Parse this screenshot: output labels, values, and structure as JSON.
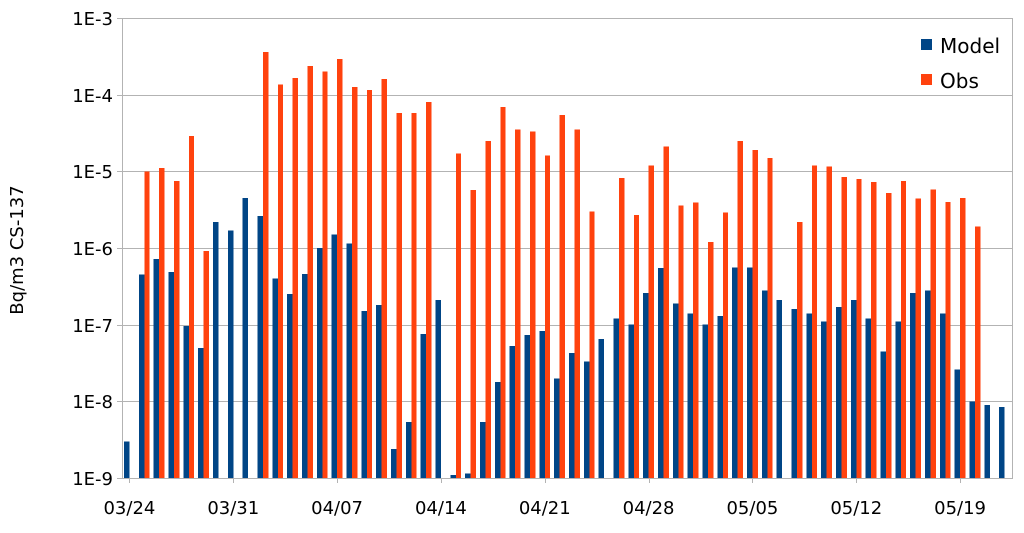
{
  "chart_data": {
    "type": "bar",
    "ylabel": "Bq/m3 CS-137",
    "yscale": "log",
    "ylim": [
      1e-09,
      0.001
    ],
    "grid": true,
    "legend": "top-right",
    "y_ticks": [
      {
        "value": 0.001,
        "label": "1E-3"
      },
      {
        "value": 0.0001,
        "label": "1E-4"
      },
      {
        "value": 1e-05,
        "label": "1E-5"
      },
      {
        "value": 1e-06,
        "label": "1E-6"
      },
      {
        "value": 1e-07,
        "label": "1E-7"
      },
      {
        "value": 1e-08,
        "label": "1E-8"
      },
      {
        "value": 1e-09,
        "label": "1E-9"
      }
    ],
    "x": [
      "03/24",
      "03/25",
      "03/26",
      "03/27",
      "03/28",
      "03/29",
      "03/30",
      "03/31",
      "04/01",
      "04/02",
      "04/03",
      "04/04",
      "04/05",
      "04/06",
      "04/07",
      "04/08",
      "04/09",
      "04/10",
      "04/11",
      "04/12",
      "04/13",
      "04/14",
      "04/15",
      "04/16",
      "04/17",
      "04/18",
      "04/19",
      "04/20",
      "04/21",
      "04/22",
      "04/23",
      "04/24",
      "04/25",
      "04/26",
      "04/27",
      "04/28",
      "04/29",
      "04/30",
      "05/01",
      "05/02",
      "05/03",
      "05/04",
      "05/05",
      "05/06",
      "05/07",
      "05/08",
      "05/09",
      "05/10",
      "05/11",
      "05/12",
      "05/13",
      "05/14",
      "05/15",
      "05/16",
      "05/17",
      "05/18",
      "05/19",
      "05/20",
      "05/21",
      "05/22"
    ],
    "x_tick_labels": [
      "03/24",
      "03/31",
      "04/07",
      "04/14",
      "04/21",
      "04/28",
      "05/05",
      "05/12",
      "05/19"
    ],
    "series": [
      {
        "name": "Model",
        "color": "#004586",
        "values": [
          3e-09,
          4.5e-07,
          7.2e-07,
          4.9e-07,
          9.6e-08,
          5e-08,
          2.2e-06,
          1.7e-06,
          4.5e-06,
          2.6e-06,
          4e-07,
          2.5e-07,
          4.6e-07,
          1e-06,
          1.5e-06,
          1.15e-06,
          1.5e-07,
          1.8e-07,
          2.4e-09,
          5.4e-09,
          7.6e-08,
          2.1e-07,
          1.1e-09,
          1.15e-09,
          5.4e-09,
          1.8e-08,
          5.3e-08,
          7.3e-08,
          8.3e-08,
          2e-08,
          4.3e-08,
          3.3e-08,
          6.5e-08,
          1.2e-07,
          1e-07,
          2.6e-07,
          5.5e-07,
          1.9e-07,
          1.4e-07,
          1e-07,
          1.3e-07,
          5.6e-07,
          5.6e-07,
          2.8e-07,
          2.1e-07,
          1.6e-07,
          1.4e-07,
          1.1e-07,
          1.7e-07,
          2.1e-07,
          1.2e-07,
          4.5e-08,
          1.1e-07,
          2.6e-07,
          2.8e-07,
          1.4e-07,
          2.6e-08,
          1e-08,
          9e-09,
          8.4e-09
        ]
      },
      {
        "name": "Obs",
        "color": "#ff420e",
        "values": [
          null,
          9.9e-06,
          1.1e-05,
          7.5e-06,
          2.9e-05,
          9.1e-07,
          null,
          null,
          null,
          0.00036,
          0.000135,
          0.000165,
          0.000235,
          0.0002,
          0.00029,
          0.000125,
          0.000115,
          0.00016,
          5.8e-05,
          5.8e-05,
          8e-05,
          null,
          1.7e-05,
          5.7e-06,
          2.5e-05,
          6.9e-05,
          3.5e-05,
          3.3e-05,
          1.6e-05,
          5.4e-05,
          3.5e-05,
          3e-06,
          null,
          8.2e-06,
          2.7e-06,
          1.2e-05,
          2.1e-05,
          3.6e-06,
          3.9e-06,
          1.2e-06,
          2.9e-06,
          2.5e-05,
          1.9e-05,
          1.5e-05,
          null,
          2.2e-06,
          1.2e-05,
          1.15e-05,
          8.4e-06,
          7.9e-06,
          7.3e-06,
          5.2e-06,
          7.5e-06,
          4.4e-06,
          5.8e-06,
          4e-06,
          4.5e-06,
          1.9e-06,
          null,
          null
        ]
      }
    ]
  }
}
